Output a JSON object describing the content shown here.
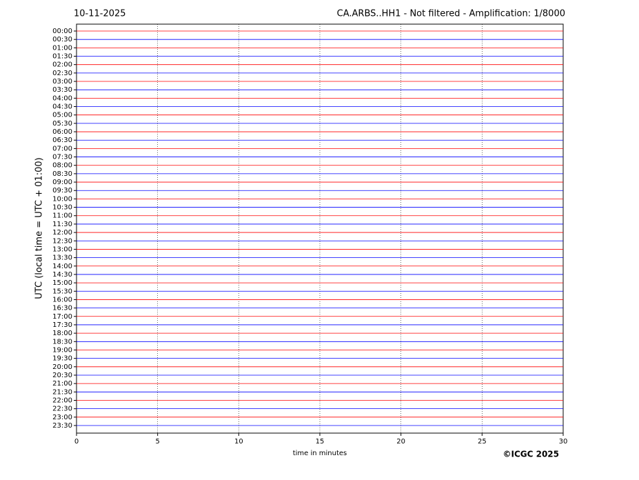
{
  "chart_data": {
    "type": "helicorder",
    "title_left": "10-11-2025",
    "title": "CA.ARBS..HH1 - Not filtered - Amplification: 1/8000",
    "y_label": "UTC (local time = UTC + 01:00)",
    "x_label": "time in minutes",
    "credit": "©ICGC 2025",
    "categories": [
      "00:00",
      "00:30",
      "01:00",
      "01:30",
      "02:00",
      "02:30",
      "03:00",
      "03:30",
      "04:00",
      "04:30",
      "05:00",
      "05:30",
      "06:00",
      "06:30",
      "07:00",
      "07:30",
      "08:00",
      "08:30",
      "09:00",
      "09:30",
      "10:00",
      "10:30",
      "11:00",
      "11:30",
      "12:00",
      "12:30",
      "13:00",
      "13:30",
      "14:00",
      "14:30",
      "15:00",
      "15:30",
      "16:00",
      "16:30",
      "17:00",
      "17:30",
      "18:00",
      "18:30",
      "19:00",
      "19:30",
      "20:00",
      "20:30",
      "21:00",
      "21:30",
      "22:00",
      "22:30",
      "23:00",
      "23:30"
    ],
    "trace_colors": [
      "#ff0000",
      "#0000ff"
    ],
    "xlim": [
      0,
      30
    ],
    "xticks": [
      0,
      5,
      10,
      15,
      20,
      25,
      30
    ],
    "grid": true
  }
}
